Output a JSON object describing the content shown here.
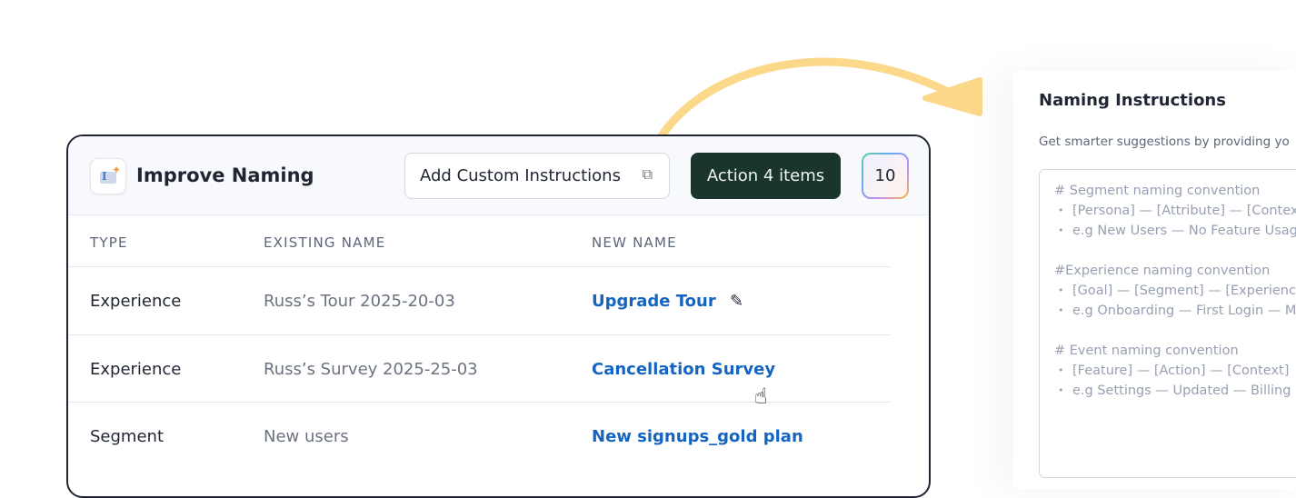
{
  "card": {
    "title": "Improve Naming",
    "custom_button": "Add Custom Instructions",
    "action_button": "Action 4 items",
    "count_badge": "10",
    "columns": [
      "TYPE",
      "EXISTING NAME",
      "NEW NAME"
    ],
    "rows": [
      {
        "type": "Experience",
        "existing": "Russ’s Tour 2025-20-03",
        "new": "Upgrade Tour"
      },
      {
        "type": "Experience",
        "existing": "Russ’s Survey 2025-25-03",
        "new": "Cancellation Survey"
      },
      {
        "type": "Segment",
        "existing": "New users",
        "new": "New signups_gold plan"
      }
    ]
  },
  "panel": {
    "title": "Naming Instructions",
    "subtitle": "Get smarter suggestions by providing yo",
    "sections": [
      {
        "heading": "# Segment naming convention",
        "bullets": [
          "[Persona] — [Attribute] — [Context",
          "e.g New Users — No Feature Usag"
        ]
      },
      {
        "heading": "#Experience naming convention",
        "bullets": [
          "[Goal] — [Segment] — [Experience",
          "e.g Onboarding — First Login — M"
        ]
      },
      {
        "heading": "# Event naming convention",
        "bullets": [
          "[Feature] — [Action] — [Context]",
          "e.g Settings — Updated — Billing"
        ]
      }
    ]
  },
  "colors": {
    "action": "#19352c",
    "link": "#1565c0",
    "arrow": "#fcd98a"
  }
}
